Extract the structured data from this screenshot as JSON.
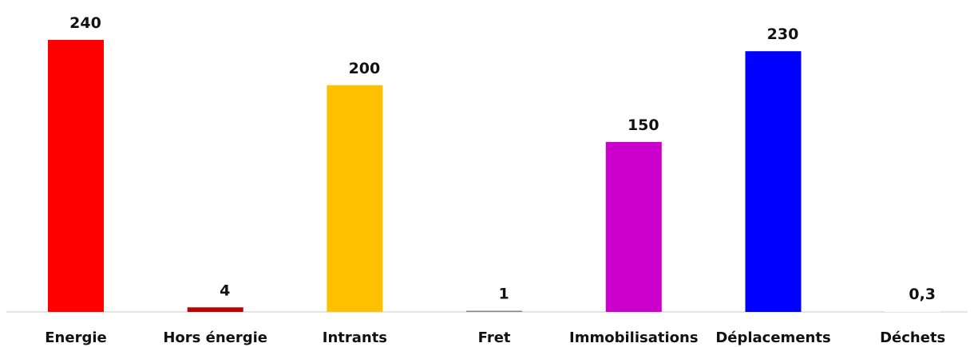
{
  "chart_data": {
    "type": "bar",
    "categories": [
      "Energie",
      "Hors énergie",
      "Intrants",
      "Fret",
      "Immobilisations",
      "Déplacements",
      "Déchets"
    ],
    "values": [
      240,
      4,
      200,
      1,
      150,
      230,
      0.3
    ],
    "value_labels": [
      "240",
      "4",
      "200",
      "1",
      "150",
      "230",
      "0,3"
    ],
    "colors": [
      "#ff0000",
      "#c00000",
      "#ffc000",
      "#808080",
      "#cc00cc",
      "#0000ff",
      "#ffffff"
    ],
    "title": "",
    "xlabel": "",
    "ylabel": "",
    "ylim": [
      0,
      240
    ],
    "grid": false,
    "legend": "none"
  }
}
